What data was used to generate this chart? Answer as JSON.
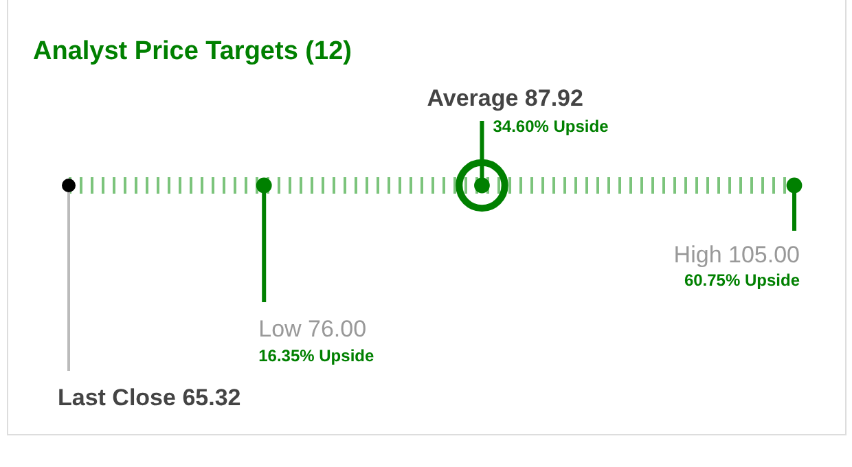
{
  "chart_data": {
    "type": "other",
    "title": "Analyst Price Targets (12)",
    "categories": [
      "Last Close",
      "Low",
      "Average",
      "High"
    ],
    "values": [
      65.32,
      76,
      87.92,
      105
    ],
    "value_labels": [
      "65.32",
      "76.00",
      "87.92",
      "105.00"
    ],
    "colors": [
      "#000000",
      "#008000",
      "#008000",
      "#008000"
    ],
    "annotations": [
      "16.35% Upside",
      "34.60% Upside",
      "60.75% Upside"
    ]
  }
}
